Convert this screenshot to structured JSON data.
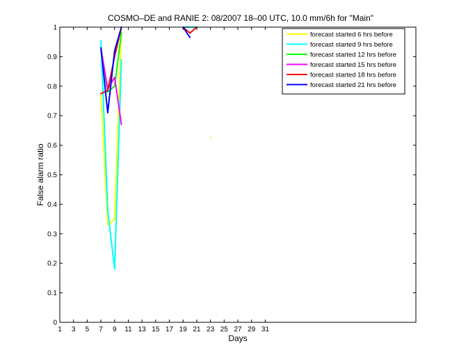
{
  "chart_data": {
    "type": "line",
    "title": "COSMO–DE and RANIE 2: 08/2007 18–00 UTC, 10.0 mm/6h for \"Main\"",
    "xlabel": "Days",
    "ylabel": "False alarm ratio",
    "xlim": [
      1,
      53
    ],
    "ylim": [
      0,
      1
    ],
    "xticks": [
      1,
      3,
      5,
      7,
      9,
      11,
      13,
      15,
      17,
      19,
      21,
      23,
      25,
      27,
      29,
      31
    ],
    "yticks": [
      0,
      0.1,
      0.2,
      0.3,
      0.4,
      0.5,
      0.6,
      0.7,
      0.8,
      0.9,
      1
    ],
    "ytick_labels": [
      "0",
      "0.1",
      "0.2",
      "0.3",
      "0.4",
      "0.5",
      "0.6",
      "0.7",
      "0.8",
      "0.9",
      "1"
    ],
    "grid": false,
    "legend_position": "top-right",
    "series": [
      {
        "name": "forecast started 6 hrs before",
        "color": "#ffff00",
        "segments": [
          [
            [
              7,
              0.77
            ],
            [
              8,
              0.33
            ],
            [
              9,
              0.35
            ],
            [
              10,
              1.0
            ]
          ],
          [
            [
              23,
              0.625
            ],
            [
              23.05,
              0.625
            ]
          ],
          [
            [
              31,
              1.0
            ],
            [
              31.05,
              1.0
            ]
          ]
        ]
      },
      {
        "name": "forecast started 9 hrs before",
        "color": "#00ffff",
        "segments": [
          [
            [
              7,
              0.955
            ],
            [
              8,
              0.38
            ],
            [
              9,
              0.18
            ],
            [
              10,
              0.89
            ]
          ],
          [
            [
              19,
              1.0
            ],
            [
              20,
              1.0
            ],
            [
              21,
              1.0
            ]
          ]
        ]
      },
      {
        "name": "forecast started 12 hrs before",
        "color": "#00ff00",
        "segments": [
          [
            [
              7,
              0.92
            ],
            [
              8,
              0.78
            ],
            [
              9,
              0.8
            ],
            [
              10,
              0.98
            ]
          ]
        ]
      },
      {
        "name": "forecast started 15 hrs before",
        "color": "#ff00ff",
        "segments": [
          [
            [
              7,
              0.93
            ],
            [
              8,
              0.79
            ],
            [
              9,
              0.83
            ],
            [
              10,
              0.67
            ]
          ]
        ]
      },
      {
        "name": "forecast started 18 hrs before",
        "color": "#ff0000",
        "segments": [
          [
            [
              7,
              0.775
            ],
            [
              8,
              0.785
            ],
            [
              9,
              0.9
            ],
            [
              10,
              1.0
            ]
          ],
          [
            [
              19,
              1.0
            ],
            [
              20,
              0.98
            ],
            [
              21,
              1.0
            ]
          ]
        ]
      },
      {
        "name": "forecast started 21 hrs before",
        "color": "#0000ff",
        "segments": [
          [
            [
              7,
              0.93
            ],
            [
              8,
              0.71
            ],
            [
              9,
              0.92
            ],
            [
              10,
              1.0
            ]
          ],
          [
            [
              19,
              1.0
            ],
            [
              20,
              0.965
            ]
          ]
        ]
      }
    ]
  }
}
